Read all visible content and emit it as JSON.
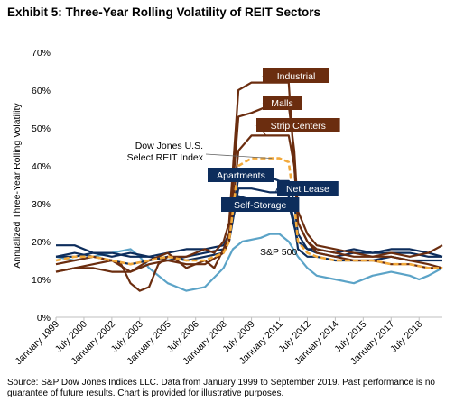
{
  "title": "Exhibit 5: Three-Year Rolling Volatility of REIT Sectors",
  "source": "Source: S&P Dow Jones Indices LLC.  Data from January 1999 to September 2019.  Past performance is no guarantee of future results.  Chart is provided for illustrative purposes.",
  "colors": {
    "industrial": "#6b2d0f",
    "malls": "#6b2d0f",
    "strip_centers": "#6b2d0f",
    "dow_jones_reit": "#f2a93b",
    "apartments": "#0d2d5c",
    "net_lease": "#0d2d5c",
    "self_storage": "#0d2d5c",
    "sp500": "#5ba3c7",
    "axis": "#bfbfbf"
  },
  "chart_data": {
    "type": "line",
    "ylabel": "Annualized Three-Year Rolling Volatility",
    "xlabel": "",
    "ylim": [
      0,
      70
    ],
    "yticks": [
      "0%",
      "10%",
      "20%",
      "30%",
      "40%",
      "50%",
      "60%",
      "70%"
    ],
    "xlim": [
      1999.0,
      2019.75
    ],
    "xticks": [
      {
        "label": "January 1999",
        "x": 1999.0
      },
      {
        "label": "July 2000",
        "x": 2000.5
      },
      {
        "label": "January 2002",
        "x": 2002.0
      },
      {
        "label": "July 2003",
        "x": 2003.5
      },
      {
        "label": "January 2005",
        "x": 2005.0
      },
      {
        "label": "July 2006",
        "x": 2006.5
      },
      {
        "label": "January 2008",
        "x": 2008.0
      },
      {
        "label": "July 2009",
        "x": 2009.5
      },
      {
        "label": "January 2011",
        "x": 2011.0
      },
      {
        "label": "July 2012",
        "x": 2012.5
      },
      {
        "label": "January 2014",
        "x": 2014.0
      },
      {
        "label": "July 2015",
        "x": 2015.5
      },
      {
        "label": "January 2017",
        "x": 2017.0
      },
      {
        "label": "July 2018",
        "x": 2018.5
      }
    ],
    "series": [
      {
        "key": "industrial",
        "name": "Industrial",
        "style": "solid",
        "x": [
          1999.0,
          2000.0,
          2001.0,
          2002.0,
          2002.5,
          2003.0,
          2003.5,
          2004.0,
          2004.5,
          2005.0,
          2006.0,
          2007.0,
          2007.5,
          2008.0,
          2008.3,
          2008.8,
          2009.5,
          2010.5,
          2011.5,
          2011.8,
          2012.0,
          2012.5,
          2013.0,
          2014.0,
          2015.0,
          2016.0,
          2017.0,
          2018.0,
          2019.0,
          2019.75
        ],
        "y": [
          12,
          13,
          14,
          15,
          14,
          9,
          7,
          8,
          14,
          16,
          16,
          18,
          17,
          20,
          25,
          60,
          62,
          62,
          62,
          40,
          25,
          20,
          18,
          17,
          16,
          16,
          17,
          16,
          17,
          19
        ]
      },
      {
        "key": "malls",
        "name": "Malls",
        "style": "solid",
        "x": [
          1999.0,
          2000.0,
          2001.0,
          2002.0,
          2003.0,
          2004.0,
          2005.0,
          2006.0,
          2007.0,
          2007.5,
          2008.0,
          2008.3,
          2008.8,
          2009.5,
          2010.5,
          2011.0,
          2011.5,
          2011.8,
          2012.0,
          2012.5,
          2013.0,
          2014.0,
          2015.0,
          2016.0,
          2017.0,
          2018.0,
          2019.0,
          2019.75
        ],
        "y": [
          14,
          15,
          16,
          15,
          12,
          15,
          17,
          13,
          15,
          13,
          18,
          22,
          53,
          54,
          56,
          56,
          56,
          44,
          28,
          22,
          19,
          18,
          17,
          16,
          16,
          15,
          14,
          13
        ]
      },
      {
        "key": "strip_centers",
        "name": "Strip Centers",
        "style": "solid",
        "x": [
          1999.0,
          2000.0,
          2001.0,
          2002.0,
          2003.0,
          2004.0,
          2005.0,
          2006.0,
          2007.0,
          2008.0,
          2008.3,
          2008.8,
          2009.5,
          2010.5,
          2011.0,
          2011.5,
          2011.8,
          2012.0,
          2012.5,
          2013.0,
          2014.0,
          2015.0,
          2016.0,
          2017.0,
          2018.0,
          2019.0,
          2019.75
        ],
        "y": [
          12,
          13,
          13,
          12,
          12,
          14,
          15,
          14,
          14,
          17,
          20,
          44,
          48,
          48,
          48,
          48,
          40,
          25,
          20,
          17,
          16,
          15,
          15,
          14,
          14,
          13,
          13
        ]
      },
      {
        "key": "dow_jones_reit",
        "name": "Dow Jones U.S. Select REIT Index",
        "style": "dashed",
        "x": [
          1999.0,
          2000.0,
          2001.0,
          2002.0,
          2003.0,
          2004.0,
          2005.0,
          2006.0,
          2007.0,
          2008.0,
          2008.3,
          2008.8,
          2009.5,
          2010.5,
          2011.0,
          2011.5,
          2011.8,
          2012.0,
          2012.5,
          2013.0,
          2014.0,
          2015.0,
          2016.0,
          2017.0,
          2018.0,
          2019.0,
          2019.75
        ],
        "y": [
          15,
          16,
          16,
          15,
          14,
          15,
          16,
          15,
          15,
          17,
          20,
          40,
          42,
          42,
          42,
          41,
          30,
          20,
          17,
          16,
          15,
          15,
          15,
          14,
          14,
          13,
          13
        ]
      },
      {
        "key": "apartments",
        "name": "Apartments",
        "style": "solid",
        "x": [
          1999.0,
          2000.0,
          2001.0,
          2002.0,
          2003.0,
          2004.0,
          2005.0,
          2006.0,
          2007.0,
          2008.0,
          2008.3,
          2008.8,
          2009.5,
          2010.5,
          2011.0,
          2011.5,
          2011.8,
          2012.0,
          2012.5,
          2013.0,
          2014.0,
          2015.0,
          2016.0,
          2017.0,
          2018.0,
          2019.0,
          2019.75
        ],
        "y": [
          19,
          19,
          17,
          16,
          17,
          16,
          15,
          16,
          17,
          18,
          20,
          37,
          38,
          37,
          36,
          36,
          30,
          22,
          18,
          17,
          16,
          17,
          17,
          17,
          17,
          16,
          16
        ]
      },
      {
        "key": "net_lease",
        "name": "Net Lease",
        "style": "solid",
        "x": [
          1999.0,
          2000.0,
          2001.0,
          2002.0,
          2003.0,
          2004.0,
          2005.0,
          2006.0,
          2007.0,
          2008.0,
          2008.3,
          2008.8,
          2009.5,
          2010.5,
          2011.0,
          2011.5,
          2011.8,
          2012.0,
          2012.5,
          2013.0,
          2014.0,
          2015.0,
          2016.0,
          2017.0,
          2018.0,
          2019.0,
          2019.75
        ],
        "y": [
          16,
          17,
          16,
          15,
          14,
          15,
          16,
          15,
          16,
          17,
          20,
          34,
          34,
          33,
          33,
          32,
          25,
          18,
          16,
          16,
          15,
          15,
          15,
          16,
          15,
          15,
          15
        ]
      },
      {
        "key": "self_storage",
        "name": "Self-Storage",
        "style": "solid",
        "x": [
          1999.0,
          2000.0,
          2001.0,
          2002.0,
          2003.0,
          2004.0,
          2005.0,
          2006.0,
          2007.0,
          2008.0,
          2008.3,
          2008.8,
          2009.5,
          2010.5,
          2011.0,
          2011.5,
          2011.8,
          2012.0,
          2012.5,
          2013.0,
          2014.0,
          2015.0,
          2016.0,
          2017.0,
          2018.0,
          2019.0,
          2019.75
        ],
        "y": [
          16,
          16,
          17,
          17,
          16,
          16,
          17,
          18,
          18,
          19,
          22,
          32,
          31,
          31,
          31,
          30,
          24,
          20,
          18,
          18,
          17,
          18,
          17,
          18,
          18,
          17,
          16
        ]
      },
      {
        "key": "sp500",
        "name": "S&P 500",
        "style": "solid",
        "x": [
          1999.0,
          2000.0,
          2001.0,
          2002.0,
          2003.0,
          2003.5,
          2004.0,
          2005.0,
          2005.5,
          2006.0,
          2007.0,
          2008.0,
          2008.5,
          2009.0,
          2010.0,
          2010.5,
          2011.0,
          2011.5,
          2012.0,
          2012.5,
          2013.0,
          2014.0,
          2015.0,
          2016.0,
          2017.0,
          2018.0,
          2018.5,
          2019.0,
          2019.75
        ],
        "y": [
          16,
          15,
          16,
          17,
          18,
          16,
          13,
          9,
          8,
          7,
          8,
          13,
          18,
          20,
          21,
          22,
          22,
          20,
          16,
          13,
          11,
          10,
          9,
          11,
          12,
          11,
          10,
          11,
          13
        ]
      }
    ],
    "annotations": [
      {
        "key": "industrial",
        "text": "Industrial",
        "boxed": true,
        "box_color": "#6b2d0f"
      },
      {
        "key": "malls",
        "text": "Malls",
        "boxed": true,
        "box_color": "#6b2d0f"
      },
      {
        "key": "strip_centers",
        "text": "Strip Centers",
        "boxed": true,
        "box_color": "#6b2d0f"
      },
      {
        "key": "dow_jones_reit",
        "text": "Dow Jones U.S.\nSelect REIT Index",
        "boxed": false
      },
      {
        "key": "apartments",
        "text": "Apartments",
        "boxed": true,
        "box_color": "#0d2d5c"
      },
      {
        "key": "net_lease",
        "text": "Net Lease",
        "boxed": true,
        "box_color": "#0d2d5c"
      },
      {
        "key": "self_storage",
        "text": "Self-Storage",
        "boxed": true,
        "box_color": "#0d2d5c"
      },
      {
        "key": "sp500",
        "text": "S&P 500",
        "boxed": false
      }
    ]
  }
}
